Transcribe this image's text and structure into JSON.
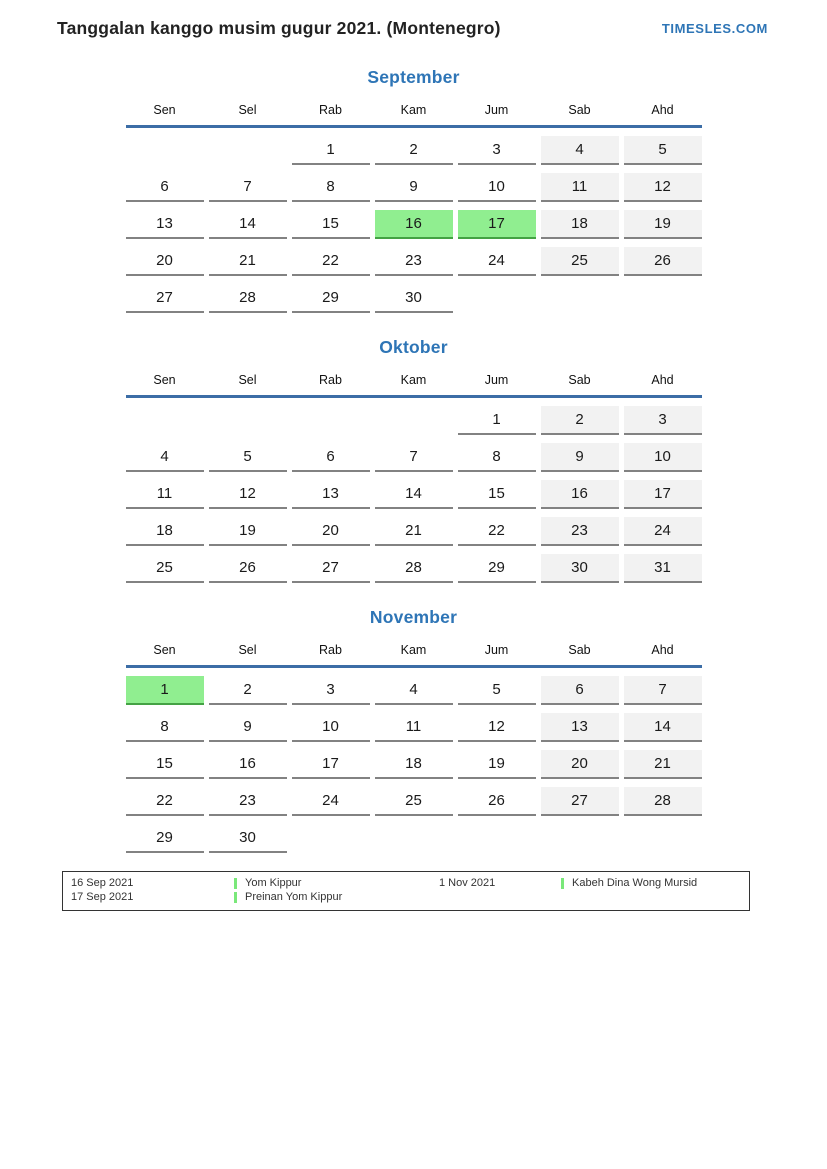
{
  "page": {
    "title": "Tanggalan kanggo musim gugur 2021. (Montenegro)",
    "site": "TIMESLES.COM"
  },
  "colors": {
    "accent_blue": "#2e75b6",
    "header_line_blue": "#3c6da6",
    "weekend_bg": "#f2f2f2",
    "highlight_green": "#90ee90",
    "highlight_border_green": "#44a244",
    "cell_underline_grey": "#828282"
  },
  "day_names": [
    "Sen",
    "Sel",
    "Rab",
    "Kam",
    "Jum",
    "Sab",
    "Ahd"
  ],
  "months": [
    {
      "name": "September",
      "weeks": [
        [
          null,
          null,
          1,
          2,
          3,
          4,
          5
        ],
        [
          6,
          7,
          8,
          9,
          10,
          11,
          12
        ],
        [
          13,
          14,
          15,
          16,
          17,
          18,
          19
        ],
        [
          20,
          21,
          22,
          23,
          24,
          25,
          26
        ],
        [
          27,
          28,
          29,
          30,
          null,
          null,
          null
        ]
      ],
      "highlighted": [
        16,
        17
      ]
    },
    {
      "name": "Oktober",
      "weeks": [
        [
          null,
          null,
          null,
          null,
          1,
          2,
          3
        ],
        [
          4,
          5,
          6,
          7,
          8,
          9,
          10
        ],
        [
          11,
          12,
          13,
          14,
          15,
          16,
          17
        ],
        [
          18,
          19,
          20,
          21,
          22,
          23,
          24
        ],
        [
          25,
          26,
          27,
          28,
          29,
          30,
          31
        ]
      ],
      "highlighted": []
    },
    {
      "name": "November",
      "weeks": [
        [
          1,
          2,
          3,
          4,
          5,
          6,
          7
        ],
        [
          8,
          9,
          10,
          11,
          12,
          13,
          14
        ],
        [
          15,
          16,
          17,
          18,
          19,
          20,
          21
        ],
        [
          22,
          23,
          24,
          25,
          26,
          27,
          28
        ],
        [
          29,
          30,
          null,
          null,
          null,
          null,
          null
        ]
      ],
      "highlighted": [
        1
      ]
    }
  ],
  "legend": {
    "groups": [
      {
        "rows": [
          {
            "date": "16 Sep 2021",
            "event": "Yom Kippur"
          },
          {
            "date": "17 Sep 2021",
            "event": "Preinan Yom Kippur"
          }
        ]
      },
      {
        "rows": [
          {
            "date": "1 Nov 2021",
            "event": "Kabeh Dina Wong Mursid"
          }
        ]
      }
    ]
  }
}
